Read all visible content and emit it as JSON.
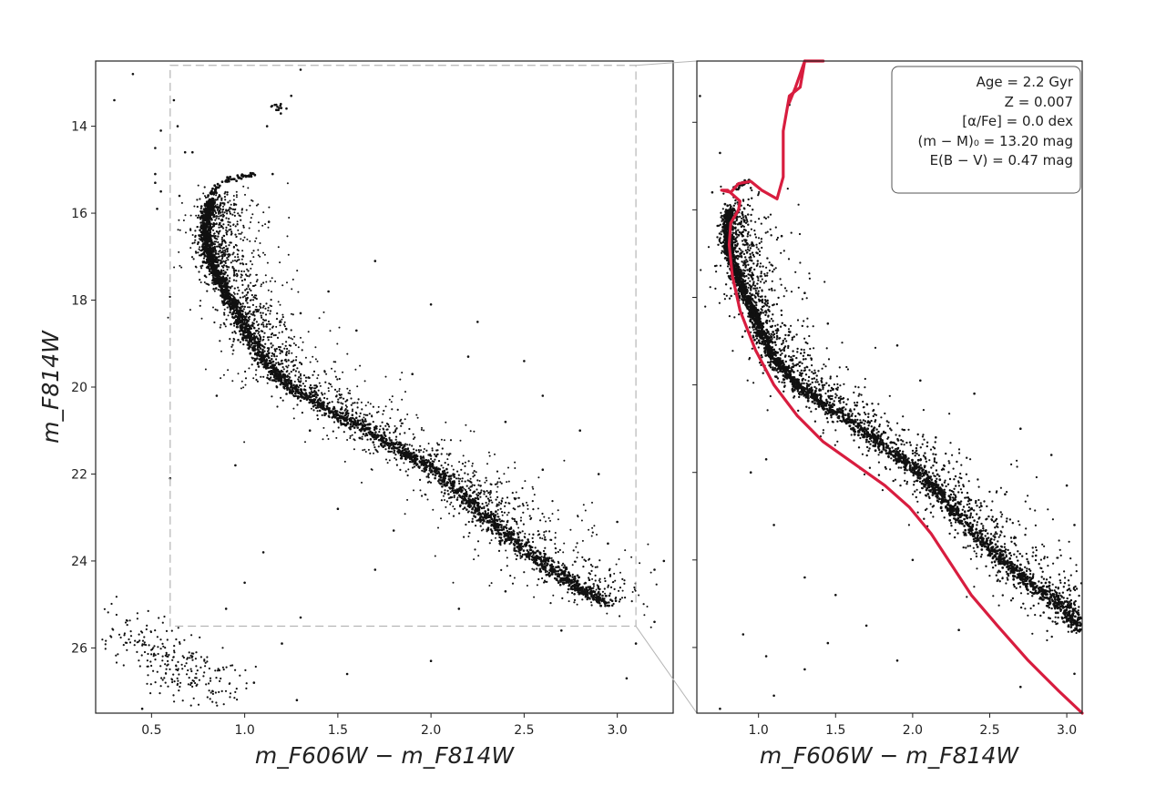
{
  "chart_data": [
    {
      "type": "scatter",
      "panel": "left",
      "xlabel": "m_F606W − m_F814W",
      "ylabel": "m_F814W",
      "xlim": [
        0.2,
        3.3
      ],
      "ylim": [
        27.5,
        12.5
      ],
      "y_inverted": true,
      "xticks": [
        0.5,
        1.0,
        1.5,
        2.0,
        2.5,
        3.0
      ],
      "xtick_labels": [
        "0.5",
        "1.0",
        "1.5",
        "2.0",
        "2.5",
        "3.0"
      ],
      "yticks": [
        14,
        16,
        18,
        20,
        22,
        24,
        26
      ],
      "ytick_labels": [
        "14",
        "16",
        "18",
        "20",
        "22",
        "24",
        "26"
      ],
      "grid": false,
      "inset_box": {
        "x": [
          0.6,
          3.1
        ],
        "y": [
          12.6,
          25.5
        ],
        "style": "dashed gray"
      },
      "series": [
        {
          "kind": "ridge",
          "color": "#000000",
          "points": [
            [
              0.82,
              15.7
            ],
            [
              0.8,
              16.0
            ],
            [
              0.79,
              16.4
            ],
            [
              0.8,
              16.8
            ],
            [
              0.83,
              17.2
            ],
            [
              0.88,
              17.7
            ],
            [
              0.95,
              18.2
            ],
            [
              1.02,
              18.8
            ],
            [
              1.1,
              19.4
            ],
            [
              1.22,
              19.9
            ],
            [
              1.4,
              20.4
            ],
            [
              1.62,
              20.9
            ],
            [
              1.85,
              21.5
            ],
            [
              2.05,
              22.0
            ],
            [
              2.2,
              22.6
            ],
            [
              2.35,
              23.2
            ],
            [
              2.55,
              23.9
            ],
            [
              2.75,
              24.5
            ],
            [
              2.95,
              25.0
            ]
          ]
        },
        {
          "kind": "subgiant-branch",
          "color": "#000000",
          "points": [
            [
              0.82,
              15.6
            ],
            [
              0.86,
              15.35
            ],
            [
              0.92,
              15.2
            ],
            [
              1.0,
              15.15
            ],
            [
              1.05,
              15.1
            ]
          ]
        },
        {
          "kind": "white-dwarf-clump",
          "color": "#000000",
          "points": [
            [
              0.35,
              25.5
            ],
            [
              0.5,
              26.0
            ],
            [
              0.6,
              26.4
            ],
            [
              0.75,
              26.7
            ],
            [
              0.9,
              26.9
            ]
          ]
        },
        {
          "kind": "red-clump",
          "color": "#000000",
          "points": [
            [
              1.15,
              13.5
            ],
            [
              1.2,
              13.6
            ],
            [
              1.22,
              13.75
            ],
            [
              1.18,
              13.65
            ]
          ]
        }
      ],
      "field_points": [
        [
          0.4,
          12.8
        ],
        [
          0.3,
          13.4
        ],
        [
          0.62,
          13.4
        ],
        [
          0.64,
          14.0
        ],
        [
          0.55,
          14.1
        ],
        [
          0.52,
          14.5
        ],
        [
          0.52,
          15.1
        ],
        [
          0.52,
          15.3
        ],
        [
          0.55,
          15.5
        ],
        [
          0.65,
          15.6
        ],
        [
          0.68,
          14.6
        ],
        [
          0.72,
          14.6
        ],
        [
          0.53,
          15.9
        ],
        [
          0.76,
          16.1
        ],
        [
          1.3,
          12.7
        ],
        [
          1.25,
          13.3
        ],
        [
          1.12,
          14.0
        ],
        [
          1.15,
          15.1
        ],
        [
          1.13,
          16.2
        ],
        [
          1.7,
          17.1
        ],
        [
          0.85,
          20.2
        ],
        [
          1.45,
          17.8
        ],
        [
          1.3,
          18.3
        ],
        [
          2.0,
          18.1
        ],
        [
          2.25,
          18.5
        ],
        [
          2.5,
          19.4
        ],
        [
          2.6,
          20.2
        ],
        [
          2.8,
          21.0
        ],
        [
          2.9,
          22.0
        ],
        [
          3.0,
          23.1
        ],
        [
          3.2,
          24.2
        ],
        [
          3.2,
          25.4
        ],
        [
          3.25,
          24.0
        ],
        [
          3.1,
          25.9
        ],
        [
          1.0,
          24.5
        ],
        [
          1.1,
          23.8
        ],
        [
          1.5,
          22.8
        ],
        [
          1.8,
          23.3
        ],
        [
          1.3,
          25.3
        ],
        [
          0.6,
          22.1
        ],
        [
          0.95,
          21.8
        ],
        [
          1.35,
          21.0
        ],
        [
          1.9,
          19.7
        ],
        [
          2.2,
          19.3
        ],
        [
          1.6,
          18.7
        ],
        [
          2.4,
          20.8
        ],
        [
          2.6,
          21.9
        ],
        [
          1.2,
          25.9
        ],
        [
          1.55,
          26.6
        ],
        [
          2.0,
          26.3
        ],
        [
          2.4,
          24.7
        ],
        [
          2.7,
          25.6
        ],
        [
          3.05,
          26.7
        ],
        [
          1.28,
          27.2
        ],
        [
          0.45,
          27.4
        ],
        [
          1.7,
          24.2
        ],
        [
          2.15,
          25.1
        ],
        [
          2.95,
          23.6
        ],
        [
          0.9,
          25.1
        ],
        [
          1.05,
          26.8
        ]
      ]
    },
    {
      "type": "scatter",
      "panel": "right",
      "xlabel": "m_F606W − m_F814W",
      "xlim": [
        0.6,
        3.1
      ],
      "ylim": [
        27.5,
        12.6
      ],
      "y_inverted": true,
      "xticks": [
        1.0,
        1.5,
        2.0,
        2.5,
        3.0
      ],
      "xtick_labels": [
        "1.0",
        "1.5",
        "2.0",
        "2.5",
        "3.0"
      ],
      "yticks": [
        14,
        16,
        18,
        20,
        22,
        24,
        26
      ],
      "ytick_labels_visible": false,
      "grid": false,
      "annotation": {
        "lines": [
          "Age = 2.2 Gyr",
          "Z = 0.007",
          "[α/Fe] = 0.0 dex",
          "(m − M)₀ = 13.20 mag",
          "E(B − V) = 0.47 mag"
        ],
        "placement": "top-right"
      },
      "isochrone": {
        "color": "#d81d3f",
        "points": [
          [
            3.1,
            27.5
          ],
          [
            2.95,
            27.0
          ],
          [
            2.75,
            26.3
          ],
          [
            2.55,
            25.5
          ],
          [
            2.38,
            24.8
          ],
          [
            2.25,
            24.1
          ],
          [
            2.12,
            23.4
          ],
          [
            1.98,
            22.8
          ],
          [
            1.82,
            22.3
          ],
          [
            1.62,
            21.8
          ],
          [
            1.42,
            21.3
          ],
          [
            1.25,
            20.7
          ],
          [
            1.1,
            20.0
          ],
          [
            0.98,
            19.2
          ],
          [
            0.88,
            18.3
          ],
          [
            0.83,
            17.5
          ],
          [
            0.81,
            16.8
          ],
          [
            0.82,
            16.3
          ],
          [
            0.87,
            16.0
          ],
          [
            0.88,
            15.8
          ],
          [
            0.8,
            15.55
          ],
          [
            0.76,
            15.55
          ],
          [
            0.82,
            15.6
          ],
          [
            0.87,
            15.4
          ],
          [
            0.95,
            15.35
          ],
          [
            1.02,
            15.55
          ],
          [
            1.12,
            15.75
          ],
          [
            1.16,
            15.25
          ],
          [
            1.16,
            14.2
          ],
          [
            1.2,
            13.4
          ],
          [
            1.27,
            13.2
          ],
          [
            1.3,
            12.6
          ]
        ],
        "rgb_hook": [
          [
            1.2,
            13.55
          ],
          [
            1.24,
            13.2
          ],
          [
            1.3,
            12.6
          ],
          [
            1.42,
            12.55
          ]
        ]
      },
      "series": [
        {
          "kind": "ridge",
          "color": "#000000",
          "points": [
            [
              0.81,
              16.0
            ],
            [
              0.8,
              16.4
            ],
            [
              0.8,
              16.8
            ],
            [
              0.83,
              17.2
            ],
            [
              0.88,
              17.7
            ],
            [
              0.95,
              18.2
            ],
            [
              1.02,
              18.8
            ],
            [
              1.1,
              19.4
            ],
            [
              1.22,
              19.9
            ],
            [
              1.4,
              20.4
            ],
            [
              1.62,
              20.9
            ],
            [
              1.85,
              21.5
            ],
            [
              2.05,
              22.0
            ],
            [
              2.2,
              22.6
            ],
            [
              2.35,
              23.2
            ],
            [
              2.55,
              23.9
            ],
            [
              2.75,
              24.5
            ],
            [
              2.95,
              25.0
            ],
            [
              3.1,
              25.6
            ]
          ]
        }
      ],
      "field_points": [
        [
          0.62,
          13.4
        ],
        [
          0.75,
          14.7
        ],
        [
          0.7,
          15.6
        ],
        [
          0.95,
          15.5
        ],
        [
          1.2,
          13.6
        ],
        [
          1.18,
          13.8
        ],
        [
          1.15,
          16.6
        ],
        [
          1.3,
          17.9
        ],
        [
          1.45,
          18.6
        ],
        [
          1.1,
          19.4
        ],
        [
          1.9,
          19.1
        ],
        [
          2.05,
          19.9
        ],
        [
          2.4,
          20.2
        ],
        [
          2.7,
          21.0
        ],
        [
          2.9,
          21.6
        ],
        [
          3.0,
          22.3
        ],
        [
          3.05,
          23.2
        ],
        [
          2.8,
          23.9
        ],
        [
          0.95,
          22.0
        ],
        [
          1.1,
          23.2
        ],
        [
          1.3,
          24.4
        ],
        [
          1.5,
          24.8
        ],
        [
          0.9,
          25.7
        ],
        [
          1.05,
          26.2
        ],
        [
          1.3,
          26.5
        ],
        [
          1.45,
          25.9
        ],
        [
          1.7,
          25.5
        ],
        [
          1.9,
          26.3
        ],
        [
          2.3,
          25.6
        ],
        [
          2.0,
          24.0
        ],
        [
          2.4,
          23.1
        ],
        [
          2.6,
          22.5
        ],
        [
          0.75,
          27.4
        ],
        [
          1.1,
          27.1
        ],
        [
          1.6,
          20.6
        ],
        [
          1.05,
          21.7
        ],
        [
          2.15,
          21.2
        ],
        [
          2.85,
          25.2
        ],
        [
          3.05,
          26.6
        ],
        [
          2.7,
          26.9
        ]
      ]
    }
  ]
}
